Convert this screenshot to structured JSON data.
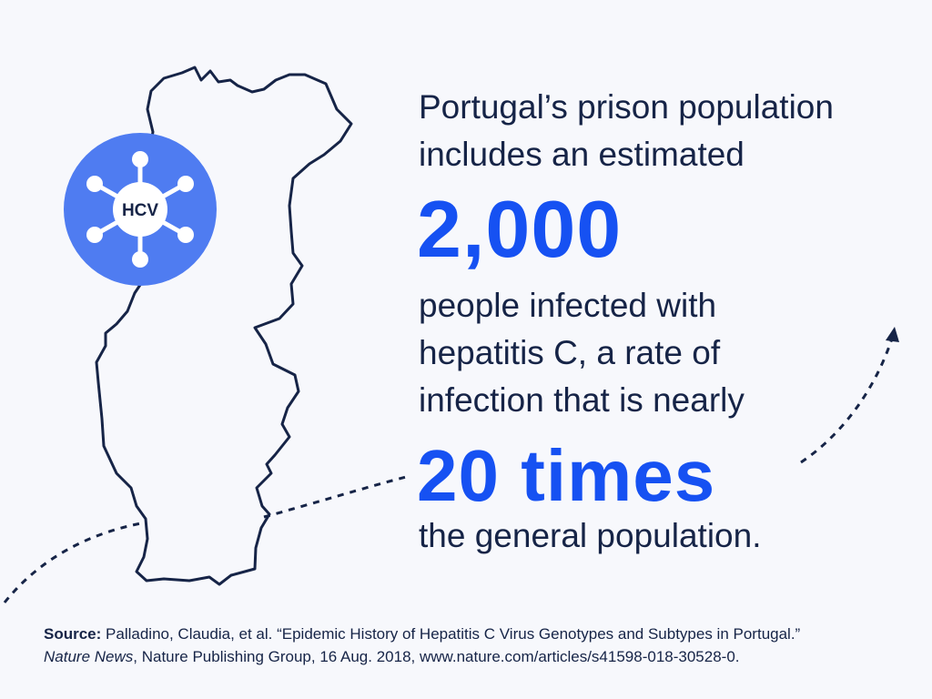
{
  "headline": {
    "line1": "Portugal’s prison population",
    "line2": "includes an estimated"
  },
  "highlight_primary": "2,000",
  "middle_text": {
    "line1": "people infected with",
    "line2": "hepatitis C, a rate of",
    "line3": "infection that is nearly"
  },
  "highlight_secondary": "20 times",
  "closing_text": "the general population.",
  "badge": {
    "label": "HCV",
    "icon": "virus-icon"
  },
  "map": {
    "icon": "portugal-map-outline"
  },
  "source": {
    "label": "Source:",
    "citation": "Palladino, Claudia, et al. “Epidemic History of Hepatitis C Virus Genotypes and Subtypes in Portugal.”",
    "publication": "Nature News",
    "details": ", Nature Publishing Group, 16 Aug. 2018, www.nature.com/articles/s41598-018-30528-0."
  },
  "colors": {
    "background": "#f7f8fc",
    "text": "#162447",
    "accent": "#1651f2",
    "badge_fill": "#4f7cf1"
  }
}
